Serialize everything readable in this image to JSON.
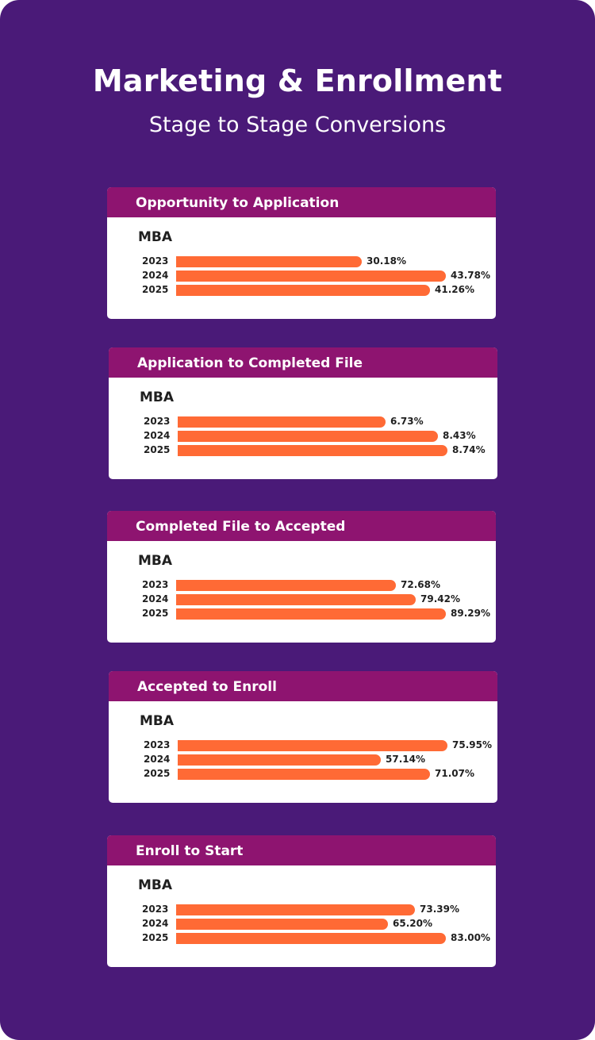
{
  "title": "Marketing & Enrollment",
  "subtitle": "Stage to Stage Conversions",
  "colors": {
    "background": "#4a1a78",
    "header": "#8e1470",
    "bar": "#ff6a35",
    "card": "#ffffff"
  },
  "chart_data": [
    {
      "type": "bar",
      "title": "Opportunity to Application",
      "group": "MBA",
      "categories": [
        "2023",
        "2024",
        "2025"
      ],
      "values": [
        30.18,
        43.78,
        41.26
      ],
      "labels": [
        "30.18%",
        "43.78%",
        "41.26%"
      ]
    },
    {
      "type": "bar",
      "title": "Application to Completed File",
      "group": "MBA",
      "categories": [
        "2023",
        "2024",
        "2025"
      ],
      "values": [
        6.73,
        8.43,
        8.74
      ],
      "labels": [
        "6.73%",
        "8.43%",
        "8.74%"
      ]
    },
    {
      "type": "bar",
      "title": "Completed File to Accepted",
      "group": "MBA",
      "categories": [
        "2023",
        "2024",
        "2025"
      ],
      "values": [
        72.68,
        79.42,
        89.29
      ],
      "labels": [
        "72.68%",
        "79.42%",
        "89.29%"
      ]
    },
    {
      "type": "bar",
      "title": "Accepted to Enroll",
      "group": "MBA",
      "categories": [
        "2023",
        "2024",
        "2025"
      ],
      "values": [
        75.95,
        57.14,
        71.07
      ],
      "labels": [
        "75.95%",
        "57.14%",
        "71.07%"
      ]
    },
    {
      "type": "bar",
      "title": "Enroll to Start",
      "group": "MBA",
      "categories": [
        "2023",
        "2024",
        "2025"
      ],
      "values": [
        73.39,
        65.2,
        83.0
      ],
      "labels": [
        "73.39%",
        "65.20%",
        "83.00%"
      ]
    }
  ]
}
